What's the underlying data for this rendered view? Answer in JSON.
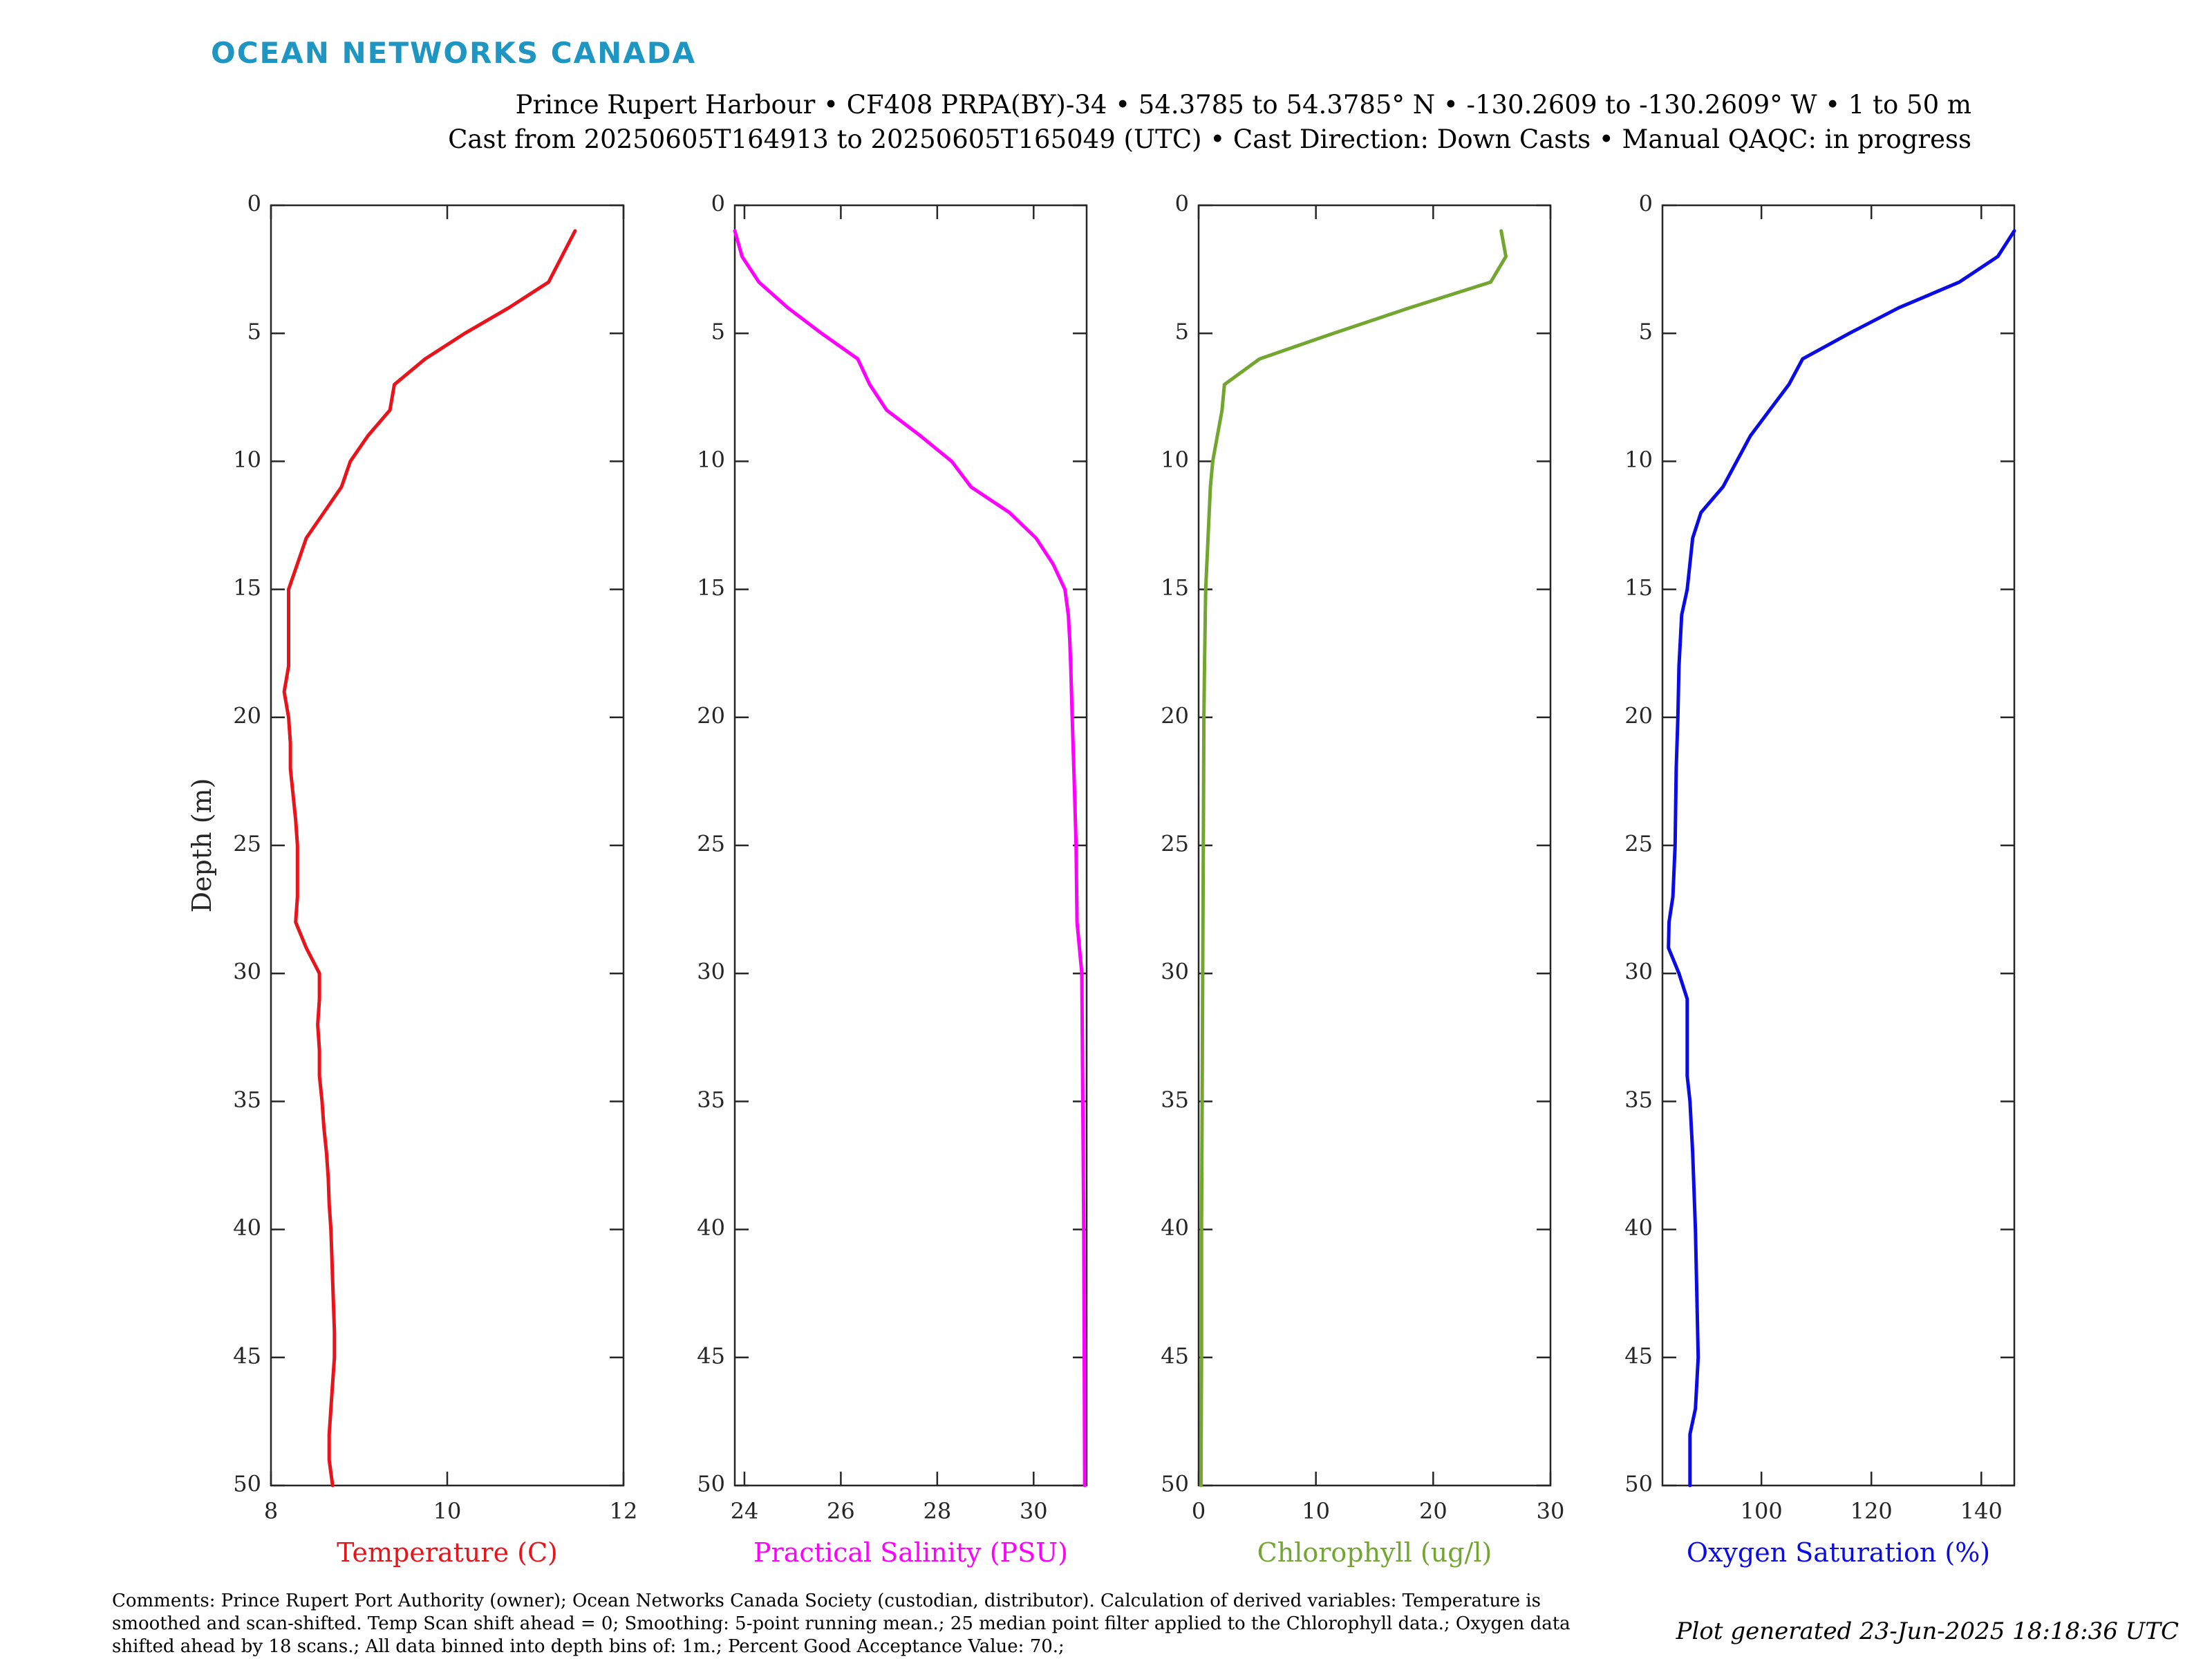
{
  "header": {
    "brand": "OCEAN NETWORKS CANADA",
    "line1": "Prince Rupert Harbour • CF408 PRPA(BY)-34 • 54.3785 to 54.3785° N • -130.2609 to -130.2609° W • 1 to 50 m",
    "line2": "Cast from 20250605T164913 to 20250605T165049 (UTC) • Cast Direction: Down Casts • Manual QAQC: in progress"
  },
  "footer": {
    "comments": "Comments: Prince Rupert Port Authority (owner); Ocean Networks Canada Society (custodian, distributor). Calculation of derived variables: Temperature is smoothed and scan-shifted. Temp Scan shift ahead = 0; Smoothing: 5-point running mean.; 25 median point filter applied to the Chlorophyll data.; Oxygen data shifted ahead by 18 scans.; All data binned into depth bins of: 1m.; Percent Good Acceptance Value: 70.;",
    "generated": "Plot generated 23-Jun-2025 18:18:36 UTC"
  },
  "chart_data": [
    {
      "type": "line",
      "xlabel": "Temperature (C)",
      "ylabel": "Depth (m)",
      "color": "#e8141b",
      "xlim": [
        8,
        12
      ],
      "ylim": [
        0,
        50
      ],
      "y_reversed": true,
      "xticks": [
        8,
        10,
        12
      ],
      "yticks": [
        0,
        5,
        10,
        15,
        20,
        25,
        30,
        35,
        40,
        45,
        50
      ],
      "points": [
        [
          11.45,
          1
        ],
        [
          11.15,
          3
        ],
        [
          10.7,
          4
        ],
        [
          10.2,
          5
        ],
        [
          9.75,
          6
        ],
        [
          9.4,
          7
        ],
        [
          9.35,
          8
        ],
        [
          9.1,
          9
        ],
        [
          8.9,
          10
        ],
        [
          8.8,
          11
        ],
        [
          8.6,
          12
        ],
        [
          8.4,
          13
        ],
        [
          8.3,
          14
        ],
        [
          8.2,
          15
        ],
        [
          8.2,
          16
        ],
        [
          8.2,
          17
        ],
        [
          8.2,
          18
        ],
        [
          8.15,
          19
        ],
        [
          8.2,
          20
        ],
        [
          8.22,
          21
        ],
        [
          8.22,
          22
        ],
        [
          8.25,
          23
        ],
        [
          8.28,
          24
        ],
        [
          8.3,
          25
        ],
        [
          8.3,
          26
        ],
        [
          8.3,
          27
        ],
        [
          8.28,
          28
        ],
        [
          8.4,
          29
        ],
        [
          8.55,
          30
        ],
        [
          8.55,
          31
        ],
        [
          8.53,
          32
        ],
        [
          8.55,
          33
        ],
        [
          8.55,
          34
        ],
        [
          8.58,
          35
        ],
        [
          8.6,
          36
        ],
        [
          8.63,
          37
        ],
        [
          8.65,
          38
        ],
        [
          8.66,
          39
        ],
        [
          8.68,
          40
        ],
        [
          8.69,
          41
        ],
        [
          8.7,
          42
        ],
        [
          8.71,
          43
        ],
        [
          8.72,
          44
        ],
        [
          8.72,
          45
        ],
        [
          8.7,
          46
        ],
        [
          8.68,
          47
        ],
        [
          8.66,
          48
        ],
        [
          8.66,
          49
        ],
        [
          8.7,
          50
        ]
      ]
    },
    {
      "type": "line",
      "xlabel": "Practical Salinity (PSU)",
      "color": "#ff00ff",
      "xlim": [
        23.8,
        31.1
      ],
      "ylim": [
        0,
        50
      ],
      "y_reversed": true,
      "xticks": [
        24,
        26,
        28,
        30
      ],
      "yticks": [
        0,
        5,
        10,
        15,
        20,
        25,
        30,
        35,
        40,
        45,
        50
      ],
      "points": [
        [
          23.8,
          1
        ],
        [
          23.95,
          2
        ],
        [
          24.3,
          3
        ],
        [
          24.9,
          4
        ],
        [
          25.6,
          5
        ],
        [
          26.35,
          6
        ],
        [
          26.6,
          7
        ],
        [
          26.95,
          8
        ],
        [
          27.65,
          9
        ],
        [
          28.3,
          10
        ],
        [
          28.7,
          11
        ],
        [
          29.5,
          12
        ],
        [
          30.05,
          13
        ],
        [
          30.4,
          14
        ],
        [
          30.65,
          15
        ],
        [
          30.72,
          16
        ],
        [
          30.75,
          17
        ],
        [
          30.77,
          18
        ],
        [
          30.8,
          20
        ],
        [
          30.85,
          23
        ],
        [
          30.88,
          25
        ],
        [
          30.9,
          28
        ],
        [
          31.0,
          30
        ],
        [
          31.02,
          35
        ],
        [
          31.04,
          40
        ],
        [
          31.05,
          45
        ],
        [
          31.06,
          50
        ]
      ]
    },
    {
      "type": "line",
      "xlabel": "Chlorophyll (ug/l)",
      "color": "#72a630",
      "xlim": [
        0,
        30
      ],
      "ylim": [
        0,
        50
      ],
      "y_reversed": true,
      "xticks": [
        0,
        10,
        20,
        30
      ],
      "yticks": [
        0,
        5,
        10,
        15,
        20,
        25,
        30,
        35,
        40,
        45,
        50
      ],
      "points": [
        [
          25.8,
          1
        ],
        [
          26.2,
          2
        ],
        [
          24.9,
          3
        ],
        [
          18.0,
          4
        ],
        [
          11.5,
          5
        ],
        [
          5.2,
          6
        ],
        [
          2.2,
          7
        ],
        [
          2.0,
          8
        ],
        [
          1.6,
          9
        ],
        [
          1.2,
          10
        ],
        [
          1.0,
          11
        ],
        [
          0.8,
          13
        ],
        [
          0.6,
          15
        ],
        [
          0.5,
          18
        ],
        [
          0.45,
          20
        ],
        [
          0.4,
          25
        ],
        [
          0.35,
          30
        ],
        [
          0.3,
          35
        ],
        [
          0.25,
          40
        ],
        [
          0.25,
          45
        ],
        [
          0.2,
          50
        ]
      ]
    },
    {
      "type": "line",
      "xlabel": "Oxygen Saturation (%)",
      "color": "#0b0be3",
      "xlim": [
        82,
        146
      ],
      "ylim": [
        0,
        50
      ],
      "y_reversed": true,
      "xticks": [
        100,
        120,
        140
      ],
      "yticks": [
        0,
        5,
        10,
        15,
        20,
        25,
        30,
        35,
        40,
        45,
        50
      ],
      "points": [
        [
          146,
          1
        ],
        [
          143,
          2
        ],
        [
          136,
          3
        ],
        [
          125,
          4
        ],
        [
          116,
          5
        ],
        [
          107.5,
          6
        ],
        [
          105,
          7
        ],
        [
          101.5,
          8
        ],
        [
          98,
          9
        ],
        [
          95.5,
          10
        ],
        [
          93,
          11
        ],
        [
          89,
          12
        ],
        [
          87.5,
          13
        ],
        [
          86.5,
          15
        ],
        [
          85.5,
          16
        ],
        [
          85,
          18
        ],
        [
          84.8,
          20
        ],
        [
          84.5,
          22
        ],
        [
          84.3,
          25
        ],
        [
          83.9,
          27
        ],
        [
          83.2,
          28
        ],
        [
          83.1,
          29
        ],
        [
          85,
          30
        ],
        [
          86.5,
          31
        ],
        [
          86.5,
          34
        ],
        [
          87,
          35
        ],
        [
          87.5,
          37
        ],
        [
          88,
          40
        ],
        [
          88.3,
          43
        ],
        [
          88.5,
          45
        ],
        [
          88,
          47
        ],
        [
          87,
          48
        ],
        [
          87,
          49
        ],
        [
          87,
          50
        ]
      ]
    }
  ]
}
